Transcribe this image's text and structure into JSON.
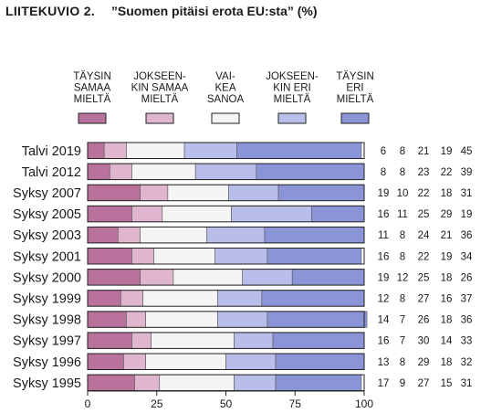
{
  "figure": {
    "label": "LIITEKUVIO 2.",
    "title": "”Suomen pitäisi erota EU:sta” (%)"
  },
  "chart_data": {
    "type": "bar",
    "orientation": "horizontal",
    "stacked": true,
    "legend_placement": "top",
    "categories": [
      "Talvi 2019",
      "Talvi 2012",
      "Syksy 2007",
      "Syksy 2005",
      "Syksy 2003",
      "Syksy 2001",
      "Syksy 2000",
      "Syksy 1999",
      "Syksy 1998",
      "Syksy 1997",
      "Syksy 1996",
      "Syksy 1995"
    ],
    "series": [
      {
        "name": "TÄYSIN SAMAA MIELTÄ",
        "legend_lines": [
          "TÄYSIN",
          "SAMAA",
          "MIELTÄ"
        ],
        "color": "#b9729b",
        "values": [
          6,
          8,
          19,
          16,
          11,
          16,
          19,
          12,
          14,
          16,
          13,
          17
        ]
      },
      {
        "name": "JOKSEEN-KIN SAMAA MIELTÄ",
        "legend_lines": [
          "JOKSEEN-",
          "KIN SAMAA",
          "MIELTÄ"
        ],
        "color": "#dfb6ce",
        "values": [
          8,
          8,
          10,
          11,
          8,
          8,
          12,
          8,
          7,
          7,
          8,
          9
        ]
      },
      {
        "name": "VAI-KEA SANOA",
        "legend_lines": [
          "VAI-",
          "KEA",
          "SANOA"
        ],
        "color": "#f4f4f4",
        "values": [
          21,
          23,
          22,
          25,
          24,
          22,
          25,
          27,
          26,
          30,
          29,
          27
        ]
      },
      {
        "name": "JOKSEEN-KIN ERI MIELTÄ",
        "legend_lines": [
          "JOKSEEN-",
          "KIN ERI",
          "MIELTÄ"
        ],
        "color": "#b9bde9",
        "values": [
          19,
          22,
          18,
          29,
          21,
          19,
          18,
          16,
          18,
          14,
          18,
          15
        ]
      },
      {
        "name": "TÄYSIN ERI MIELTÄ",
        "legend_lines": [
          "TÄYSIN",
          "ERI",
          "MIELTÄ"
        ],
        "color": "#8a94d6",
        "values": [
          45,
          39,
          31,
          19,
          36,
          34,
          26,
          37,
          36,
          33,
          32,
          31
        ]
      }
    ],
    "xlim": [
      0,
      100
    ],
    "xticks": [
      0,
      25,
      50,
      75,
      100
    ],
    "grid": false
  }
}
